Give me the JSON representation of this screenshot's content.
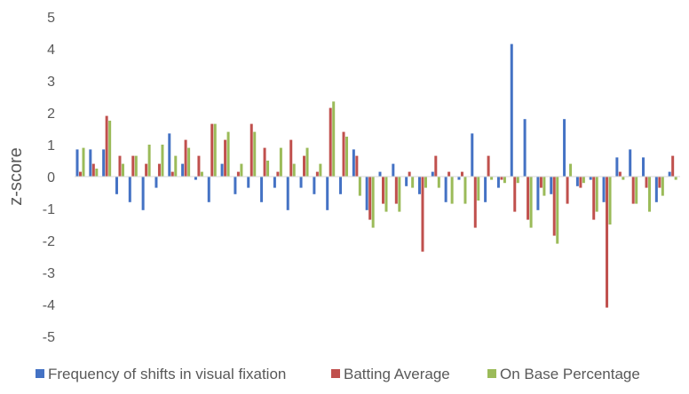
{
  "chart_data": {
    "type": "bar",
    "title": "",
    "xlabel": "",
    "ylabel": "z-score",
    "ylim": [
      -5,
      5
    ],
    "yticks": [
      5,
      4,
      3,
      2,
      1,
      0,
      -1,
      -2,
      -3,
      -4,
      -5
    ],
    "grid": false,
    "legend_position": "bottom",
    "series": [
      {
        "name": "Frequency of shifts in visual fixation",
        "color": "#4472C4",
        "values": [
          0.85,
          0.85,
          0.85,
          -0.55,
          -0.8,
          -1.05,
          -0.35,
          1.35,
          0.4,
          -0.1,
          -0.8,
          0.4,
          -0.55,
          -0.35,
          -0.8,
          -0.35,
          -1.05,
          -0.35,
          -0.55,
          -1.05,
          -0.55,
          0.85,
          -1.05,
          0.15,
          0.4,
          -0.3,
          -0.55,
          0.15,
          -0.8,
          -0.1,
          1.35,
          -0.8,
          -0.35,
          4.15,
          1.8,
          -1.05,
          -0.55,
          1.8,
          -0.3,
          -0.1,
          -0.8,
          0.6,
          0.85,
          0.6,
          -0.8,
          0.15
        ]
      },
      {
        "name": "Batting Average",
        "color": "#C0504D",
        "values": [
          0.15,
          0.4,
          1.9,
          0.65,
          0.65,
          0.4,
          0.4,
          0.15,
          1.15,
          0.65,
          1.65,
          1.15,
          0.15,
          1.65,
          0.9,
          0.15,
          1.15,
          0.65,
          0.15,
          2.15,
          1.4,
          0.65,
          -1.35,
          -0.85,
          -0.85,
          0.15,
          -2.35,
          0.65,
          0.15,
          0.15,
          -1.6,
          0.65,
          -0.1,
          -1.1,
          -1.35,
          -0.35,
          -1.85,
          -0.85,
          -0.35,
          -1.35,
          -4.1,
          0.15,
          -0.85,
          -0.35,
          -0.35,
          0.65
        ]
      },
      {
        "name": "On Base Percentage",
        "color": "#9BBB59",
        "values": [
          0.9,
          0.25,
          1.75,
          0.4,
          0.65,
          1.0,
          1.0,
          0.65,
          0.9,
          0.15,
          1.65,
          1.4,
          0.4,
          1.4,
          0.5,
          0.9,
          0.4,
          0.9,
          0.4,
          2.35,
          1.25,
          -0.6,
          -1.6,
          -1.1,
          -1.1,
          -0.35,
          -0.35,
          -0.35,
          -0.85,
          -0.85,
          -0.75,
          -0.1,
          -0.2,
          -0.2,
          -1.6,
          -0.6,
          -2.1,
          0.4,
          -0.2,
          -1.1,
          -1.5,
          -0.1,
          -0.85,
          -1.1,
          -0.6,
          -0.1
        ]
      }
    ]
  }
}
